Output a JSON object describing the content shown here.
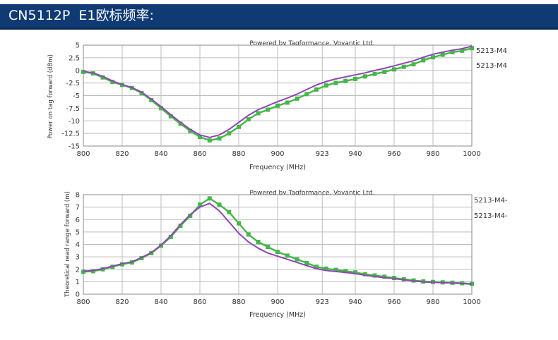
{
  "header": {
    "title": "CN5112P  E1欧标频率:"
  },
  "colors": {
    "header_bg": "#0f3a73",
    "green": "#45b649",
    "purple": "#8e47b3",
    "grid": "#bdbdbd"
  },
  "chart_data": [
    {
      "type": "line",
      "title": "Powered by Tagformance, Voyantic Ltd.",
      "xlabel": "Frequency (MHz)",
      "ylabel": "Power on tag forward (dBm)",
      "xlim": [
        800,
        1000
      ],
      "ylim": [
        -15,
        5
      ],
      "grid": true,
      "legend_position": "right",
      "x_ticks": [
        "800",
        "820",
        "840",
        "860",
        "880",
        "900",
        "923",
        "940",
        "960",
        "980",
        "1000"
      ],
      "y_ticks": [
        "5",
        "2.5",
        "0",
        "-2.5",
        "-5",
        "-7.5",
        "-10",
        "-12.5",
        "-15"
      ],
      "series": [
        {
          "name": "5213-M4",
          "color": "#45b649",
          "markers": true,
          "x": [
            800,
            805,
            810,
            815,
            820,
            825,
            830,
            835,
            840,
            845,
            850,
            855,
            860,
            865,
            870,
            875,
            880,
            885,
            890,
            895,
            900,
            905,
            910,
            915,
            920,
            925,
            930,
            935,
            940,
            945,
            950,
            955,
            960,
            965,
            970,
            975,
            980,
            985,
            990,
            995,
            1000
          ],
          "y": [
            -0.3,
            -0.6,
            -1.4,
            -2.3,
            -2.9,
            -3.5,
            -4.5,
            -5.9,
            -7.5,
            -9.1,
            -10.6,
            -12.0,
            -13.2,
            -13.9,
            -13.5,
            -12.5,
            -11.2,
            -9.7,
            -8.5,
            -7.8,
            -7.0,
            -6.4,
            -5.6,
            -4.7,
            -3.8,
            -3.0,
            -2.5,
            -2.1,
            -1.7,
            -1.2,
            -0.7,
            -0.3,
            0.2,
            0.7,
            1.2,
            2.0,
            2.6,
            3.1,
            3.6,
            3.9,
            4.4
          ]
        },
        {
          "name": "5213-M4",
          "color": "#8e47b3",
          "markers": false,
          "x": [
            800,
            805,
            810,
            815,
            820,
            825,
            830,
            835,
            840,
            845,
            850,
            855,
            860,
            865,
            870,
            875,
            880,
            885,
            890,
            895,
            900,
            905,
            910,
            915,
            920,
            925,
            930,
            935,
            940,
            945,
            950,
            955,
            960,
            965,
            970,
            975,
            980,
            985,
            990,
            995,
            1000
          ],
          "y": [
            -0.2,
            -0.5,
            -1.2,
            -2.1,
            -2.8,
            -3.4,
            -4.3,
            -5.7,
            -7.2,
            -8.8,
            -10.3,
            -11.7,
            -12.8,
            -13.3,
            -12.8,
            -11.7,
            -10.3,
            -8.9,
            -7.8,
            -7.0,
            -6.2,
            -5.5,
            -4.7,
            -3.8,
            -2.9,
            -2.2,
            -1.7,
            -1.3,
            -0.9,
            -0.5,
            0.0,
            0.4,
            0.9,
            1.4,
            1.9,
            2.6,
            3.2,
            3.6,
            4.0,
            4.3,
            4.8
          ]
        }
      ]
    },
    {
      "type": "line",
      "title": "Powered by Tagformance, Voyantic Ltd.",
      "xlabel": "Frequency (MHz)",
      "ylabel": "Theoretical read range forward (m)",
      "xlim": [
        800,
        1000
      ],
      "ylim": [
        0,
        8
      ],
      "grid": true,
      "legend_position": "right",
      "x_ticks": [
        "800",
        "820",
        "840",
        "860",
        "880",
        "900",
        "923",
        "940",
        "960",
        "980",
        "1000"
      ],
      "y_ticks": [
        "8",
        "7",
        "6",
        "5",
        "4",
        "3",
        "2",
        "1",
        "0"
      ],
      "series": [
        {
          "name": "5213-M4-",
          "color": "#45b649",
          "markers": true,
          "x": [
            800,
            805,
            810,
            815,
            820,
            825,
            830,
            835,
            840,
            845,
            850,
            855,
            860,
            865,
            870,
            875,
            880,
            885,
            890,
            895,
            900,
            905,
            910,
            915,
            920,
            925,
            930,
            935,
            940,
            945,
            950,
            955,
            960,
            965,
            970,
            975,
            980,
            985,
            990,
            995,
            1000
          ],
          "y": [
            1.8,
            1.85,
            2.0,
            2.2,
            2.4,
            2.55,
            2.9,
            3.3,
            3.9,
            4.6,
            5.5,
            6.3,
            7.2,
            7.7,
            7.2,
            6.6,
            5.7,
            4.8,
            4.2,
            3.8,
            3.4,
            3.1,
            2.8,
            2.5,
            2.2,
            2.05,
            1.95,
            1.85,
            1.75,
            1.6,
            1.5,
            1.4,
            1.3,
            1.2,
            1.1,
            1.02,
            0.98,
            0.95,
            0.92,
            0.88,
            0.83
          ]
        },
        {
          "name": "5213-M4-",
          "color": "#8e47b3",
          "markers": false,
          "x": [
            800,
            805,
            810,
            815,
            820,
            825,
            830,
            835,
            840,
            845,
            850,
            855,
            860,
            865,
            870,
            875,
            880,
            885,
            890,
            895,
            900,
            905,
            910,
            915,
            920,
            925,
            930,
            935,
            940,
            945,
            950,
            955,
            960,
            965,
            970,
            975,
            980,
            985,
            990,
            995,
            1000
          ],
          "y": [
            1.85,
            1.9,
            2.05,
            2.25,
            2.45,
            2.6,
            2.95,
            3.35,
            3.95,
            4.7,
            5.6,
            6.4,
            7.0,
            7.3,
            6.7,
            5.8,
            4.9,
            4.2,
            3.7,
            3.3,
            3.05,
            2.8,
            2.55,
            2.3,
            2.05,
            1.9,
            1.82,
            1.75,
            1.65,
            1.52,
            1.42,
            1.33,
            1.25,
            1.15,
            1.06,
            0.99,
            0.95,
            0.92,
            0.89,
            0.85,
            0.8
          ]
        }
      ]
    }
  ]
}
